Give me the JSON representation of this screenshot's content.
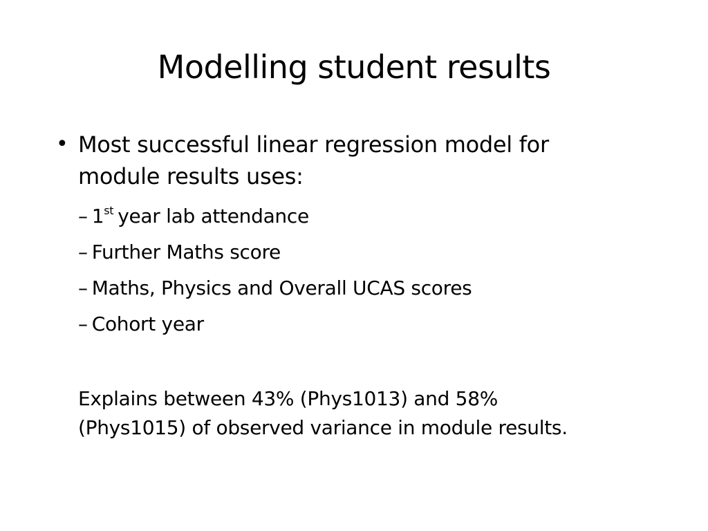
{
  "slide": {
    "title": "Modelling student results",
    "bullet": {
      "marker": "•",
      "line1": "Most successful linear regression model for",
      "line2": "module results uses:"
    },
    "sub_items": [
      {
        "dash": "–",
        "prefix": "1",
        "sup": "st",
        "text": "year lab attendance"
      },
      {
        "dash": "–",
        "text": "Further Maths score"
      },
      {
        "dash": "–",
        "text": "Maths, Physics and Overall UCAS scores"
      },
      {
        "dash": "–",
        "text": "Cohort year"
      }
    ],
    "explanation": {
      "line1": "Explains between 43% (Phys1013) and 58%",
      "line2": "(Phys1015) of observed variance in module results."
    }
  }
}
